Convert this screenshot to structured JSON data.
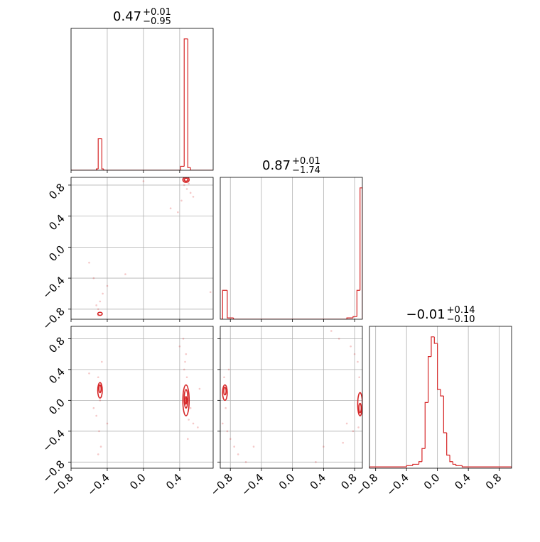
{
  "chart_data": {
    "type": "corner",
    "color": "#d62728",
    "grid": true,
    "axes": [
      {
        "lim": [
          -0.8,
          0.77
        ],
        "ticks": [
          {
            "value": -0.8,
            "label": "−0.8"
          },
          {
            "value": -0.4,
            "label": "−0.4"
          },
          {
            "value": 0,
            "label": "0.0"
          },
          0.4
        ]
      },
      {
        "lim": [
          -0.93,
          0.9
        ],
        "ticks": [
          {
            "value": -0.8,
            "label": "−0.8"
          },
          {
            "value": -0.4,
            "label": "−0.4"
          },
          {
            "value": 0,
            "label": "0.0"
          },
          0.4,
          0.8
        ]
      },
      {
        "lim": [
          -0.88,
          0.96
        ],
        "ticks": [
          {
            "value": -0.8,
            "label": "−0.8"
          },
          {
            "value": -0.4,
            "label": "−0.4"
          },
          {
            "value": 0,
            "label": "0.0"
          },
          0.4,
          0.8
        ]
      }
    ],
    "histograms": [
      {
        "title": "0.47",
        "upper": "+0.01",
        "lower": "−0.95",
        "bins": [
          -0.8,
          -0.52,
          -0.5,
          -0.46,
          -0.44,
          0.41,
          0.45,
          0.49,
          0.52,
          0.77
        ],
        "counts": [
          0,
          1,
          24,
          1,
          0,
          3,
          100,
          2,
          0
        ]
      },
      {
        "title": "0.87",
        "upper": "+0.01",
        "lower": "−1.74",
        "bins": [
          -0.93,
          -0.9,
          -0.84,
          -0.76,
          0.7,
          0.78,
          0.83,
          0.87,
          0.9
        ],
        "counts": [
          0,
          22,
          1,
          0,
          1,
          2,
          22,
          100
        ]
      },
      {
        "title": "−0.01",
        "upper": "+0.14",
        "lower": "−0.10",
        "bins": [
          -0.88,
          -0.4,
          -0.32,
          -0.24,
          -0.2,
          -0.16,
          -0.12,
          -0.08,
          -0.04,
          0,
          0.04,
          0.08,
          0.12,
          0.16,
          0.2,
          0.24,
          0.32,
          0.4,
          0.96
        ],
        "counts": [
          1,
          2,
          3,
          5,
          15,
          50,
          85,
          100,
          95,
          60,
          55,
          27,
          10,
          5,
          3,
          2,
          1,
          1
        ]
      }
    ],
    "pairs": [
      {
        "x": [
          0.45,
          0.5,
          0.48,
          0.52,
          0.42,
          0.55,
          0.38,
          0.3,
          0.5,
          0.46,
          -0.5,
          -0.48,
          -0.52,
          -0.45,
          -0.55,
          -0.6,
          -0.4,
          -0.2,
          0.74,
          -0.5,
          0.0
        ],
        "y": [
          0.8,
          0.82,
          0.75,
          0.7,
          0.6,
          0.65,
          0.45,
          0.5,
          0.9,
          0.88,
          -0.8,
          -0.7,
          -0.75,
          -0.6,
          -0.4,
          -0.2,
          -0.5,
          -0.35,
          -0.58,
          -0.88,
          0.85
        ],
        "contours": [
          {
            "cx": 0.47,
            "cy": 0.87,
            "rx": 0.035,
            "ry": 0.035
          },
          {
            "cx": 0.47,
            "cy": 0.87,
            "rx": 0.02,
            "ry": 0.02
          },
          {
            "cx": -0.48,
            "cy": -0.86,
            "rx": 0.025,
            "ry": 0.02
          }
        ]
      },
      {
        "x": [
          -0.5,
          -0.48,
          -0.52,
          -0.49,
          -0.47,
          -0.5,
          -0.46,
          -0.55,
          -0.6,
          -0.4,
          0.46,
          0.48,
          0.5,
          0.44,
          0.47,
          0.52,
          0.45,
          0.4,
          0.55,
          0.49,
          0.6,
          0.62
        ],
        "y": [
          0.3,
          0.0,
          -0.2,
          -0.4,
          -0.6,
          -0.7,
          0.5,
          -0.1,
          0.35,
          -0.3,
          0.5,
          0.3,
          -0.25,
          0.8,
          0.6,
          -0.1,
          0.4,
          0.7,
          -0.3,
          -0.5,
          -0.35,
          0.15
        ],
        "contours": [
          {
            "cx": -0.48,
            "cy": 0.13,
            "rx": 0.025,
            "ry": 0.1
          },
          {
            "cx": -0.48,
            "cy": 0.15,
            "rx": 0.012,
            "ry": 0.05
          },
          {
            "cx": 0.47,
            "cy": 0.0,
            "rx": 0.035,
            "ry": 0.2
          },
          {
            "cx": 0.47,
            "cy": 0.02,
            "rx": 0.02,
            "ry": 0.12
          },
          {
            "cx": 0.47,
            "cy": 0.0,
            "rx": 0.008,
            "ry": 0.05
          }
        ]
      },
      {
        "x": [
          -0.88,
          -0.86,
          -0.9,
          -0.84,
          -0.8,
          -0.75,
          -0.7,
          -0.6,
          -0.5,
          -0.82,
          0.86,
          0.84,
          0.8,
          0.75,
          0.7,
          0.6,
          0.5,
          0.85,
          0.78,
          0.4,
          0.3,
          0.65
        ],
        "y": [
          0.3,
          -0.1,
          -0.3,
          -0.4,
          -0.5,
          -0.6,
          -0.7,
          -0.8,
          -0.6,
          0.4,
          0.3,
          0.5,
          0.6,
          0.7,
          -0.3,
          0.8,
          0.9,
          -0.35,
          -0.4,
          -0.6,
          -0.8,
          -0.55
        ],
        "contours": [
          {
            "cx": -0.87,
            "cy": 0.1,
            "rx": 0.03,
            "ry": 0.1
          },
          {
            "cx": -0.87,
            "cy": 0.12,
            "rx": 0.015,
            "ry": 0.05
          },
          {
            "cx": 0.87,
            "cy": -0.05,
            "rx": 0.03,
            "ry": 0.15
          },
          {
            "cx": 0.87,
            "cy": -0.1,
            "rx": 0.015,
            "ry": 0.06
          }
        ]
      }
    ]
  }
}
